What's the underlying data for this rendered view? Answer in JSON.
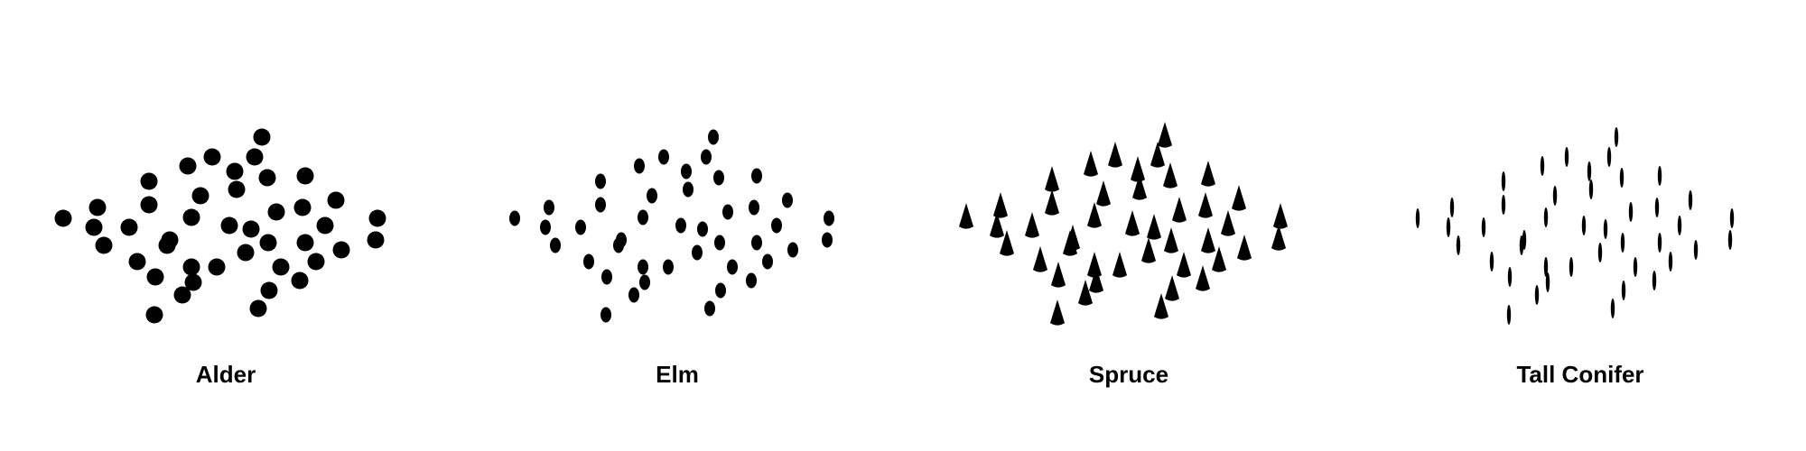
{
  "colors": {
    "background": "#ffffff",
    "mark": "#000000",
    "text": "#000000"
  },
  "panels": [
    {
      "label": "Alder",
      "shape": "round-dot"
    },
    {
      "label": "Elm",
      "shape": "oval-dot"
    },
    {
      "label": "Spruce",
      "shape": "cone"
    },
    {
      "label": "Tall Conifer",
      "shape": "thin-spindle"
    }
  ]
}
